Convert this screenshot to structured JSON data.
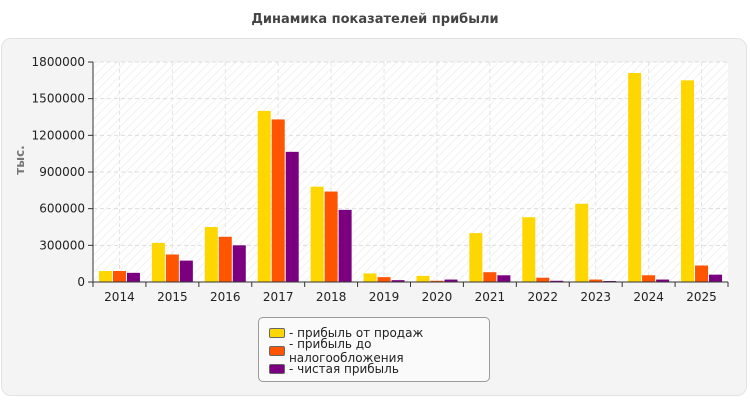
{
  "chart_data": {
    "type": "bar",
    "title": "Динамика показателей прибыли",
    "ylabel": "тыс.",
    "xlabel": "",
    "ylim": [
      0,
      1800000
    ],
    "yticks": [
      0,
      300000,
      600000,
      900000,
      1200000,
      1500000,
      1800000
    ],
    "categories": [
      "2014",
      "2015",
      "2016",
      "2017",
      "2018",
      "2019",
      "2020",
      "2021",
      "2022",
      "2023",
      "2024",
      "2025"
    ],
    "series": [
      {
        "name": "- прибыль от продаж",
        "color": "#ffd700",
        "values": [
          90000,
          320000,
          450000,
          1400000,
          780000,
          70000,
          50000,
          400000,
          530000,
          640000,
          1710000,
          1650000
        ]
      },
      {
        "name": "- прибыль до налогообложения",
        "color": "#ff5400",
        "values": [
          90000,
          225000,
          370000,
          1330000,
          740000,
          40000,
          10000,
          80000,
          35000,
          20000,
          55000,
          135000
        ]
      },
      {
        "name": "- чистая прибыль",
        "color": "#7b0080",
        "values": [
          75000,
          175000,
          300000,
          1065000,
          590000,
          15000,
          20000,
          55000,
          10000,
          8000,
          20000,
          60000
        ]
      }
    ],
    "grid": true,
    "legend": "bottom-center"
  }
}
